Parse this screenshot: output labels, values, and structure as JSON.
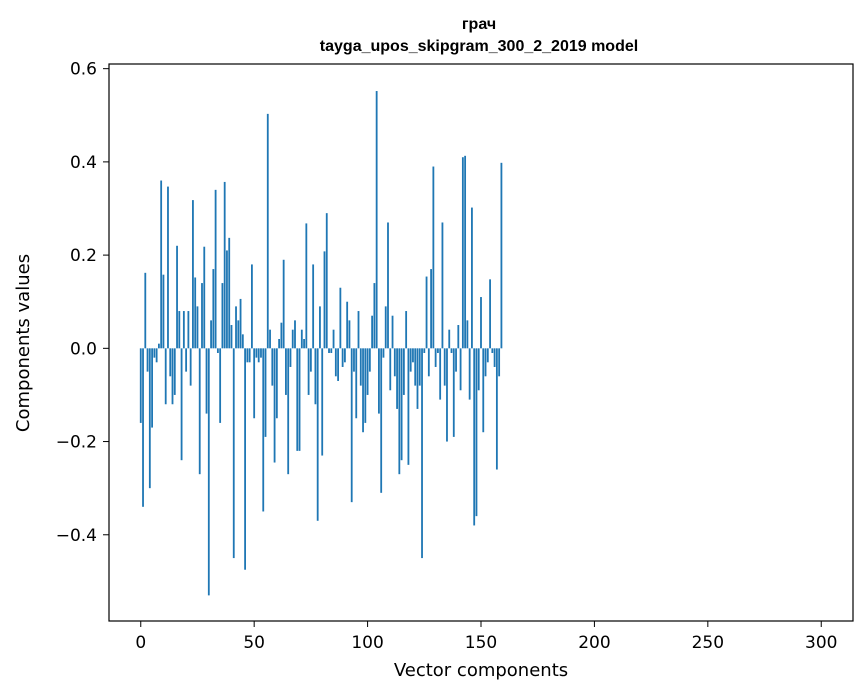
{
  "chart_data": {
    "type": "bar",
    "title": "грач",
    "subtitle": "tayga_upos_skipgram_300_2_2019 model",
    "xlabel": "Vector components",
    "ylabel": "Components values",
    "xlim": [
      -14,
      314
    ],
    "ylim": [
      -0.585,
      0.61
    ],
    "xticks": [
      0,
      50,
      100,
      150,
      200,
      250,
      300
    ],
    "xtick_labels": [
      "0",
      "50",
      "100",
      "150",
      "200",
      "250",
      "300"
    ],
    "yticks": [
      -0.4,
      -0.2,
      0.0,
      0.2,
      0.4,
      0.6
    ],
    "ytick_labels": [
      "−0.4",
      "−0.2",
      "0.0",
      "0.2",
      "0.4",
      "0.6"
    ],
    "bar_color": "#1f77b4",
    "values": [
      -0.16,
      -0.34,
      0.162,
      -0.05,
      -0.3,
      -0.17,
      -0.02,
      -0.03,
      0.01,
      0.36,
      0.158,
      -0.12,
      0.347,
      -0.06,
      -0.12,
      -0.1,
      0.22,
      0.08,
      -0.24,
      0.08,
      -0.05,
      0.08,
      -0.08,
      0.318,
      0.152,
      0.09,
      -0.27,
      0.14,
      0.218,
      -0.14,
      -0.53,
      0.06,
      0.17,
      0.34,
      -0.01,
      -0.16,
      0.14,
      0.357,
      0.21,
      0.237,
      0.05,
      -0.45,
      0.09,
      0.06,
      0.106,
      0.03,
      -0.475,
      -0.03,
      -0.03,
      0.18,
      -0.15,
      -0.02,
      -0.03,
      -0.02,
      -0.35,
      -0.19,
      0.503,
      0.04,
      -0.08,
      -0.245,
      -0.15,
      0.02,
      0.055,
      0.19,
      -0.1,
      -0.27,
      -0.04,
      0.04,
      0.06,
      -0.22,
      -0.22,
      0.04,
      0.02,
      0.268,
      -0.1,
      -0.05,
      0.18,
      -0.12,
      -0.37,
      0.09,
      -0.23,
      0.208,
      0.29,
      -0.01,
      -0.01,
      0.04,
      -0.06,
      -0.07,
      0.13,
      -0.04,
      -0.03,
      0.1,
      0.06,
      -0.33,
      -0.05,
      -0.15,
      0.08,
      -0.08,
      -0.18,
      -0.16,
      -0.1,
      -0.05,
      0.07,
      0.14,
      0.552,
      -0.14,
      -0.31,
      -0.02,
      0.09,
      0.27,
      -0.09,
      0.07,
      -0.06,
      -0.13,
      -0.27,
      -0.24,
      -0.1,
      0.08,
      -0.25,
      -0.05,
      -0.03,
      -0.08,
      -0.13,
      -0.08,
      -0.45,
      -0.01,
      0.154,
      -0.06,
      0.17,
      0.39,
      -0.04,
      -0.01,
      -0.11,
      0.27,
      -0.08,
      -0.2,
      0.04,
      -0.01,
      -0.19,
      -0.05,
      0.05,
      -0.09,
      0.41,
      0.413,
      0.06,
      -0.11,
      0.302,
      -0.38,
      -0.36,
      -0.09,
      0.11,
      -0.18,
      -0.06,
      -0.03,
      0.148,
      -0.01,
      -0.04,
      -0.26,
      -0.06,
      0.398
    ]
  }
}
